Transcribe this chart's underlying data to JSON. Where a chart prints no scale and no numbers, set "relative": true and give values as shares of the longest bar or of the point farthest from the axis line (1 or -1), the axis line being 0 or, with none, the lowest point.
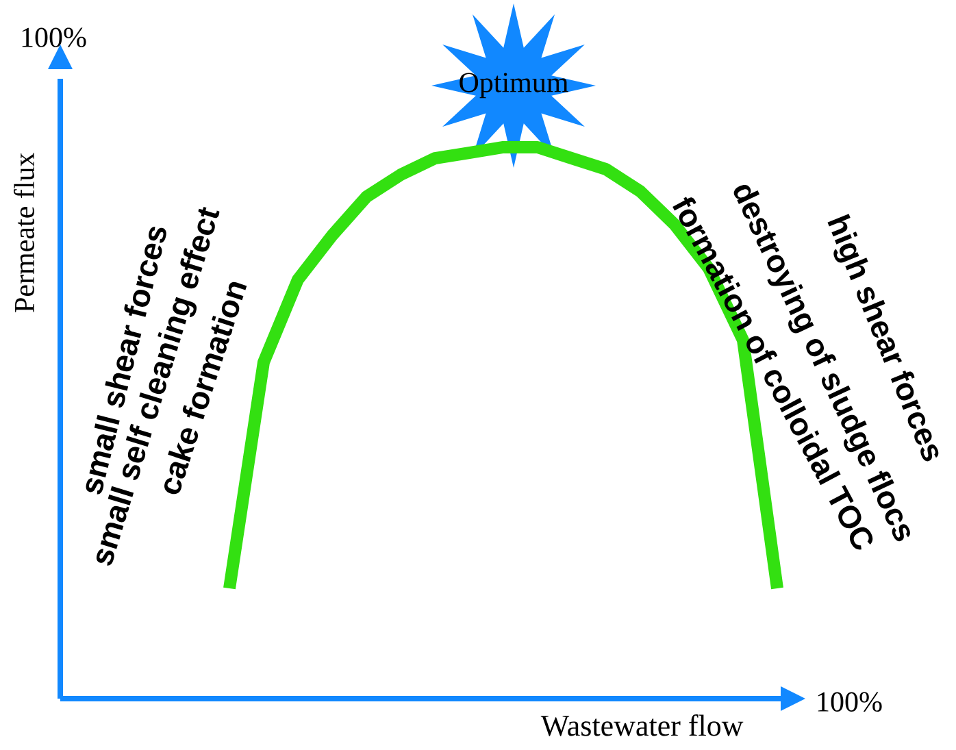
{
  "chart_data": {
    "type": "line",
    "relative": true,
    "xlabel": "Wastewater flow",
    "categories": [
      null,
      null,
      null,
      null,
      null,
      null,
      null,
      null,
      null,
      null,
      null,
      null,
      null,
      null,
      null,
      null,
      null
    ],
    "values": [
      0.2,
      0.61,
      0.76,
      0.84,
      0.91,
      0.95,
      0.98,
      0.99,
      1,
      1,
      0.98,
      0.96,
      0.92,
      0.86,
      0.78,
      0.65,
      0.2
    ],
    "color": "#33e011",
    "marker": "none",
    "line_style": "solid",
    "annotations": [
      "Optimum",
      "100%",
      "100%",
      "small shear forces",
      "small self cleaning effect",
      "cake formation",
      "high shear forces",
      "destroying of sludge flocs",
      "formation of colloidal TOC",
      "Permeate flux"
    ]
  }
}
